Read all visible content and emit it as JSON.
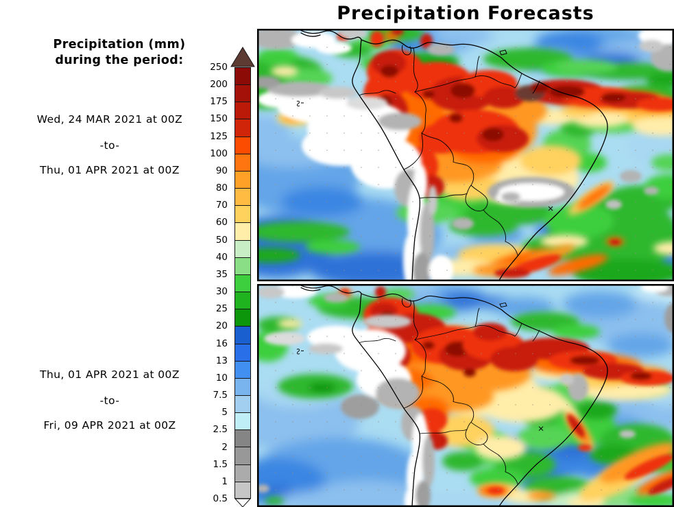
{
  "page": {
    "title": "Precipitation Forecasts"
  },
  "sidebar": {
    "heading": {
      "line1": "Precipitation (mm)",
      "line2": "during the period:"
    },
    "periods": [
      {
        "start": "Wed, 24 MAR 2021 at 00Z",
        "separator": "-to-",
        "end": "Thu, 01 APR 2021 at 00Z"
      },
      {
        "start": "Thu, 01 APR 2021 at 00Z",
        "separator": "-to-",
        "end": "Fri, 09 APR 2021 at 00Z"
      }
    ]
  },
  "colorbar": {
    "tick_labels": [
      "250",
      "200",
      "175",
      "150",
      "125",
      "100",
      "90",
      "80",
      "70",
      "60",
      "50",
      "40",
      "35",
      "30",
      "25",
      "20",
      "16",
      "13",
      "10",
      "7.5",
      "5",
      "2.5",
      "2",
      "1.5",
      "1",
      "0.5"
    ],
    "segment_colors_top_to_bottom": [
      "#8c0b06",
      "#a31108",
      "#ba1a07",
      "#d02508",
      "#fb4c02",
      "#ff7510",
      "#ffa126",
      "#ffbb42",
      "#ffd25e",
      "#ffedaa",
      "#c8eec6",
      "#8ade85",
      "#3ecf3e",
      "#1fb31f",
      "#0b960b",
      "#1a5fd0",
      "#2970e8",
      "#418ff0",
      "#7ab4ee",
      "#a2cff0",
      "#bfeef6",
      "#858585",
      "#989898",
      "#ababab",
      "#c6c6c6"
    ],
    "overflow_arrow_color": "#5d3b33",
    "underflow_arrow_color": "#ffffff"
  },
  "maps": {
    "panel_count": 2,
    "border_color": "#000000",
    "ocean_base_color": "#aadcf2"
  }
}
